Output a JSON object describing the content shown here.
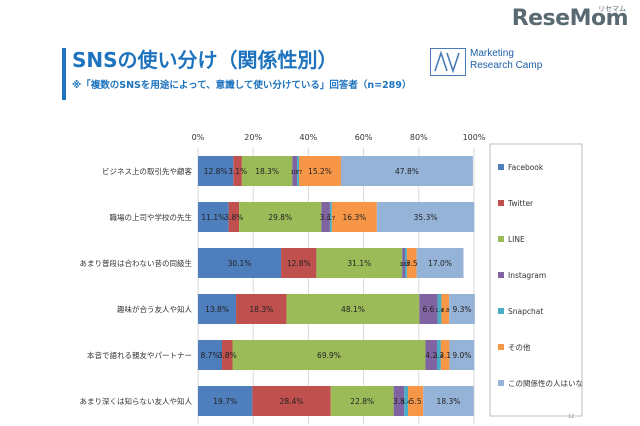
{
  "brand": {
    "name": "ReseMom",
    "sub": "リセマム"
  },
  "header": {
    "title": "SNSの使い分け（関係性別）",
    "subtitle": "※「複数のSNSを用途によって、意識して使い分けている」回答者（n=289）",
    "logo_line1": "Marketing",
    "logo_line2": "Research Camp"
  },
  "chart_data": {
    "type": "bar",
    "orientation": "horizontal",
    "stacked": "percent",
    "categories": [
      "ビジネス上の取引先や顧客",
      "職場の上司や学校の先生",
      "あまり普段は合わない昔の同級生",
      "趣味が合う友人や知人",
      "本音で語れる親友やパートナー",
      "あまり深くは知らない友人や知人"
    ],
    "series": [
      {
        "name": "Facebook",
        "color": "#4f7ebd",
        "values": [
          12.8,
          11.1,
          30.1,
          13.8,
          8.7,
          19.7
        ],
        "labels": [
          "12.8%",
          "11.1%",
          "30.1%",
          "13.8%",
          "8.7%",
          "19.7%"
        ]
      },
      {
        "name": "Twitter",
        "color": "#c0504d",
        "values": [
          3.1,
          3.8,
          12.8,
          18.3,
          3.8,
          28.4
        ],
        "labels": [
          "3.1%",
          "3.8%",
          "12.8%",
          "18.3%",
          "3.8%",
          "28.4%"
        ]
      },
      {
        "name": "LINE",
        "color": "#9bbb59",
        "values": [
          18.3,
          29.8,
          31.1,
          48.1,
          69.9,
          22.8
        ],
        "labels": [
          "18.3%",
          "29.8%",
          "31.1%",
          "48.1%",
          "69.9%",
          "22.8%"
        ]
      },
      {
        "name": "Instagram",
        "color": "#8064a2",
        "values": [
          1.7,
          3.1,
          1.0,
          6.6,
          4.2,
          3.8
        ],
        "labels": [
          "1.7",
          "3.1",
          "1.0",
          "6.6",
          "4.2",
          "3.8"
        ]
      },
      {
        "name": "Snapchat",
        "color": "#4bacc6",
        "values": [
          0.7,
          0.7,
          0.7,
          1.4,
          1.4,
          1.4
        ],
        "labels": [
          "0.7",
          "0.7",
          "0.7",
          "1.4",
          "1.4",
          "1.4"
        ]
      },
      {
        "name": "その他",
        "color": "#f79646",
        "values": [
          15.2,
          16.3,
          3.5,
          2.8,
          3.1,
          5.5
        ],
        "labels": [
          "15.2%",
          "16.3%",
          "3.5",
          "2.8",
          "3.1",
          "5.5"
        ]
      },
      {
        "name": "この関係性の人はいない",
        "color": "#95b3d7",
        "values": [
          47.8,
          35.3,
          17.0,
          9.3,
          9.0,
          18.3
        ],
        "labels": [
          "47.8%",
          "35.3%",
          "17.0%",
          "9.3%",
          "9.0%",
          "18.3%"
        ]
      }
    ],
    "xlim": [
      0,
      100
    ],
    "xticks": [
      "0%",
      "20%",
      "40%",
      "60%",
      "80%",
      "100%"
    ],
    "grid": true,
    "legend": "right"
  },
  "footer": {
    "page": "12"
  }
}
